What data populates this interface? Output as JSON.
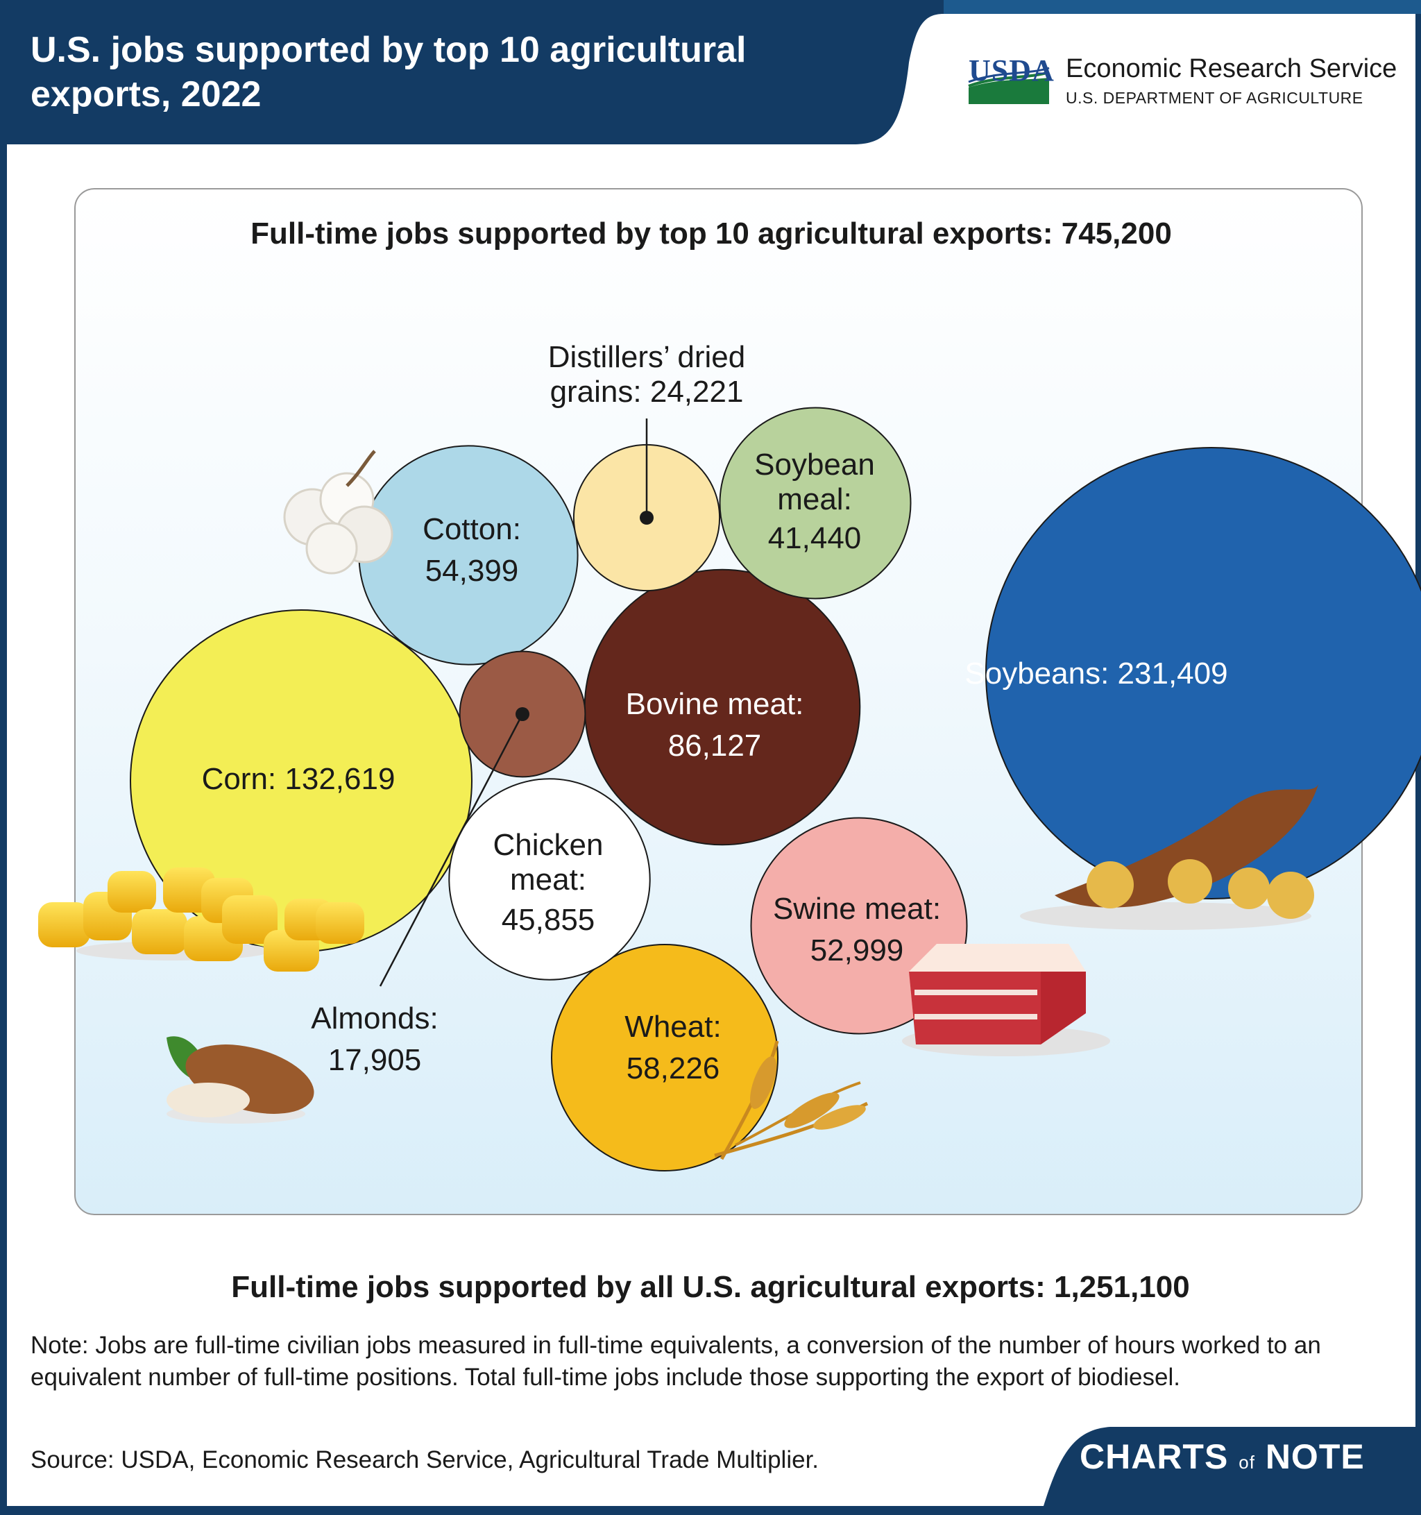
{
  "header": {
    "title": "U.S. jobs supported by top 10 agricultural exports, 2022",
    "usda_logo": "USDA",
    "agency": "Economic Research Service",
    "department": "U.S. DEPARTMENT OF AGRICULTURE"
  },
  "chart_data": {
    "type": "bubble",
    "title": "Full-time jobs supported by top 10 agricultural exports: 745,200",
    "total_top10": 745200,
    "items": [
      {
        "name": "Soybeans",
        "value": 231409,
        "label": "Soybeans: 231,409",
        "color": "#2063ad",
        "icon": "soybean-pod-icon"
      },
      {
        "name": "Corn",
        "value": 132619,
        "label": "Corn: 132,619",
        "color": "#f3ee55",
        "icon": "corn-kernels-icon"
      },
      {
        "name": "Bovine meat",
        "value": 86127,
        "label_line1": "Bovine meat:",
        "label_line2": "86,127",
        "color": "#64271c"
      },
      {
        "name": "Wheat",
        "value": 58226,
        "label_line1": "Wheat:",
        "label_line2": "58,226",
        "color": "#f5bb1b",
        "icon": "wheat-stalk-icon"
      },
      {
        "name": "Cotton",
        "value": 54399,
        "label_line1": "Cotton:",
        "label_line2": "54,399",
        "color": "#add8e8",
        "icon": "cotton-boll-icon"
      },
      {
        "name": "Swine meat",
        "value": 52999,
        "label_line1": "Swine meat:",
        "label_line2": "52,999",
        "color": "#f4aeaa",
        "icon": "pork-belly-icon"
      },
      {
        "name": "Chicken meat",
        "value": 45855,
        "label_line1": "Chicken",
        "label_line2": "meat:",
        "label_line3": "45,855",
        "color": "#ffffff"
      },
      {
        "name": "Soybean meal",
        "value": 41440,
        "label_line1": "Soybean",
        "label_line2": "meal:",
        "label_line3": "41,440",
        "color": "#b8d29c"
      },
      {
        "name": "Distillers' dried grains",
        "value": 24221,
        "label_line1": "Distillers’ dried",
        "label_line2": "grains: 24,221",
        "color": "#fbe5a6"
      },
      {
        "name": "Almonds",
        "value": 17905,
        "label_line1": "Almonds:",
        "label_line2": "17,905",
        "color": "#9b5a45",
        "icon": "almond-icon"
      }
    ]
  },
  "footer": {
    "all_exports": "Full-time jobs supported by all U.S. agricultural exports: 1,251,100",
    "note": "Note: Jobs are full-time civilian jobs measured in full-time equivalents, a conversion of the number of hours worked to an equivalent number of full-time positions. Total full-time jobs include those supporting the export of biodiesel.",
    "source": "Source: USDA, Economic Research Service, Agricultural Trade Multiplier.",
    "brand_part1": "CHARTS",
    "brand_of": "of",
    "brand_part2": "NOTE"
  },
  "colors": {
    "header_navy": "#133b64",
    "header_blue": "#1d5a8e",
    "panel_fill_top": "#ffffff",
    "panel_fill_bottom": "#dcefF9"
  }
}
